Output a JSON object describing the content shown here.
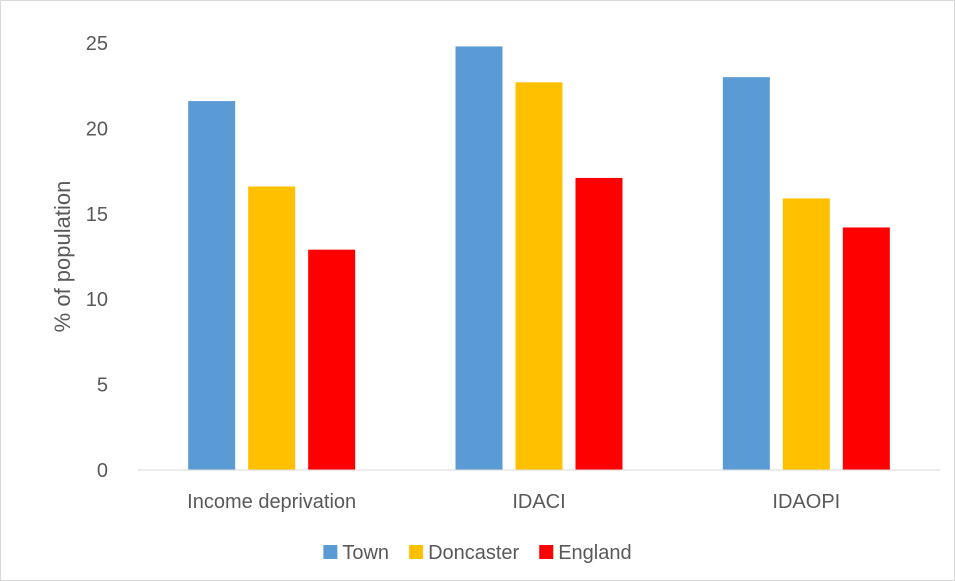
{
  "chart_data": {
    "type": "bar",
    "title": "",
    "xlabel": "",
    "ylabel": "% of population",
    "categories": [
      "Income deprivation",
      "IDACI",
      "IDAOPI"
    ],
    "series": [
      {
        "name": "Town",
        "color": "#5b9bd5",
        "values": [
          21.6,
          24.8,
          23.0
        ]
      },
      {
        "name": "Doncaster",
        "color": "#ffc000",
        "values": [
          16.6,
          22.7,
          15.9
        ]
      },
      {
        "name": "England",
        "color": "#ff0000",
        "values": [
          12.9,
          17.1,
          14.2
        ]
      }
    ],
    "ylim": [
      0,
      25
    ],
    "yticks": [
      0,
      5,
      10,
      15,
      20,
      25
    ],
    "grid": false,
    "legend_position": "bottom"
  }
}
